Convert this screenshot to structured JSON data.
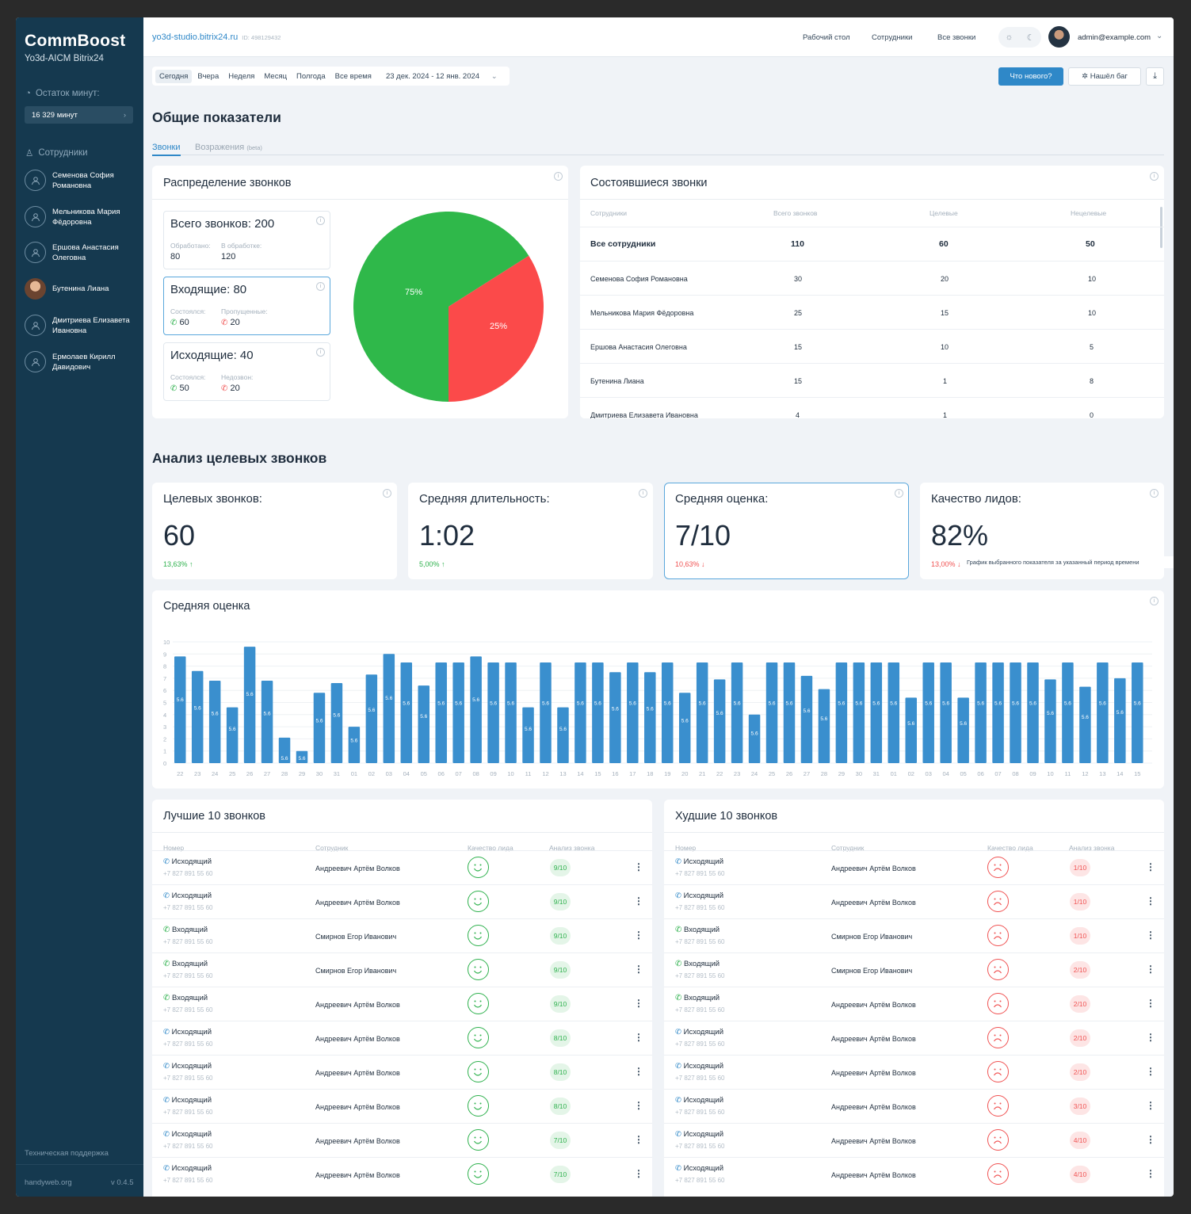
{
  "brand": {
    "name": "CommBoost",
    "subtitle": "Yo3d-AICM Bitrix24"
  },
  "sidebar": {
    "minutes_label": "Остаток минут:",
    "minutes_value": "16 329 минут",
    "employees_label": "Сотрудники",
    "employees": [
      "Семенова София Романовна",
      "Мельникова Мария Фёдоровна",
      "Ершова Анастасия Олеговна",
      "Бутенина Лиана",
      "Дмитриева Елизавета Ивановна",
      "Ермолаев Кирилл Давидович"
    ],
    "support": "Техническая поддержка",
    "footer_site": "handyweb.org",
    "version": "v 0.4.5"
  },
  "topbar": {
    "portal": "yo3d-studio.bitrix24.ru",
    "portal_id": "ID: 498129432",
    "nav": [
      "Рабочий стол",
      "Сотрудники",
      "Все звонки"
    ],
    "user": "admin@example.com"
  },
  "filters": {
    "periods": [
      "Сегодня",
      "Вчера",
      "Неделя",
      "Месяц",
      "Полгода",
      "Все время"
    ],
    "range": "23 дек. 2024 - 12 янв. 2024",
    "whats_new": "Что нового?",
    "found_bug": "Нашёл баг"
  },
  "overview": {
    "title": "Общие показатели",
    "tab_calls": "Звонки",
    "tab_objections": "Возражения",
    "tab_beta": "(beta)"
  },
  "distribution": {
    "title": "Распределение звонков",
    "total": {
      "title": "Всего звонков: 200",
      "l1": "Обработано:",
      "v1": "80",
      "l2": "В обработке:",
      "v2": "120"
    },
    "incoming": {
      "title": "Входящие: 80",
      "l1": "Состоялся:",
      "v1": "60",
      "l2": "Пропущенные:",
      "v2": "20"
    },
    "outgoing": {
      "title": "Исходящие: 40",
      "l1": "Состоялся:",
      "v1": "50",
      "l2": "Недозвон:",
      "v2": "20"
    },
    "pie": {
      "green_label": "75%",
      "red_label": "25%",
      "green_color": "#2fb84a",
      "red_color": "#fb4a4a",
      "green_share": 0.66
    }
  },
  "completed": {
    "title": "Состоявшиеся звонки",
    "headers": [
      "Сотрудники",
      "Всего звонков",
      "Целевые",
      "Нецелевые"
    ],
    "rows": [
      [
        "Все сотрудники",
        "110",
        "60",
        "50"
      ],
      [
        "Семенова София Романовна",
        "30",
        "20",
        "10"
      ],
      [
        "Мельникова Мария Фёдоровна",
        "25",
        "15",
        "10"
      ],
      [
        "Ершова Анастасия Олеговна",
        "15",
        "10",
        "5"
      ],
      [
        "Бутенина Лиана",
        "15",
        "1",
        "8"
      ],
      [
        "Дмитриева Елизавета Ивановна",
        "4",
        "1",
        "0"
      ]
    ]
  },
  "analysis": {
    "title": "Анализ целевых звонков",
    "kpis": [
      {
        "title": "Целевых звонков:",
        "value": "60",
        "change": "13,63% ↑",
        "dir": "up"
      },
      {
        "title": "Средняя длительность:",
        "value": "1:02",
        "change": "5,00% ↑",
        "dir": "up"
      },
      {
        "title": "Средняя оценка:",
        "value": "7/10",
        "change": "10,63% ↓",
        "dir": "down"
      },
      {
        "title": "Качество лидов:",
        "value": "82%",
        "change": "13,00% ↓",
        "dir": "down"
      }
    ],
    "tooltip": "График выбранного показателя за указанный период времени"
  },
  "chart_data": {
    "type": "bar",
    "title": "Средняя оценка",
    "ylim": [
      0,
      10
    ],
    "yticks": [
      0,
      1,
      2,
      3,
      4,
      5,
      6,
      7,
      8,
      9,
      10
    ],
    "bar_label": "5.6",
    "color": "#3a8fce",
    "categories": [
      "22",
      "23",
      "24",
      "25",
      "26",
      "27",
      "28",
      "29",
      "30",
      "31",
      "01",
      "02",
      "03",
      "04",
      "05",
      "06",
      "07",
      "08",
      "09",
      "10",
      "11",
      "12",
      "13",
      "14",
      "15",
      "16",
      "17",
      "18",
      "19",
      "20",
      "21",
      "22",
      "23",
      "24",
      "25",
      "26",
      "27",
      "28",
      "29",
      "30",
      "31",
      "01",
      "02",
      "03",
      "04",
      "05",
      "06",
      "07",
      "08",
      "09",
      "10",
      "11",
      "12",
      "13",
      "14",
      "15"
    ],
    "values": [
      8.8,
      7.6,
      6.8,
      4.6,
      9.6,
      6.8,
      2.1,
      1.0,
      5.8,
      6.6,
      3.0,
      7.3,
      9.0,
      8.3,
      6.4,
      8.3,
      8.3,
      8.8,
      8.3,
      8.3,
      4.6,
      8.3,
      4.6,
      8.3,
      8.3,
      7.5,
      8.3,
      7.5,
      8.3,
      5.8,
      8.3,
      6.9,
      8.3,
      4.0,
      8.3,
      8.3,
      7.2,
      6.1,
      8.3,
      8.3,
      8.3,
      8.3,
      5.4,
      8.3,
      8.3,
      5.4,
      8.3,
      8.3,
      8.3,
      8.3,
      6.9,
      8.3,
      6.3,
      8.3,
      7.0,
      8.3
    ]
  },
  "best": {
    "title": "Лучшие 10 звонков",
    "headers": [
      "Номер",
      "Сотрудник",
      "Качество лида",
      "Анализ звонка"
    ],
    "rows": [
      {
        "type": "Исходящий",
        "phone": "+7 827 891 55 60",
        "employee": "Андреевич Артём Волков",
        "score": "9/10"
      },
      {
        "type": "Исходящий",
        "phone": "+7 827 891 55 60",
        "employee": "Андреевич Артём Волков",
        "score": "9/10"
      },
      {
        "type": "Входящий",
        "phone": "+7 827 891 55 60",
        "employee": "Смирнов Егор Иванович",
        "score": "9/10"
      },
      {
        "type": "Входящий",
        "phone": "+7 827 891 55 60",
        "employee": "Смирнов Егор Иванович",
        "score": "9/10"
      },
      {
        "type": "Входящий",
        "phone": "+7 827 891 55 60",
        "employee": "Андреевич Артём Волков",
        "score": "9/10"
      },
      {
        "type": "Исходящий",
        "phone": "+7 827 891 55 60",
        "employee": "Андреевич Артём Волков",
        "score": "8/10"
      },
      {
        "type": "Исходящий",
        "phone": "+7 827 891 55 60",
        "employee": "Андреевич Артём Волков",
        "score": "8/10"
      },
      {
        "type": "Исходящий",
        "phone": "+7 827 891 55 60",
        "employee": "Андреевич Артём Волков",
        "score": "8/10"
      },
      {
        "type": "Исходящий",
        "phone": "+7 827 891 55 60",
        "employee": "Андреевич Артём Волков",
        "score": "7/10"
      },
      {
        "type": "Исходящий",
        "phone": "+7 827 891 55 60",
        "employee": "Андреевич Артём Волков",
        "score": "7/10"
      }
    ]
  },
  "worst": {
    "title": "Худшие 10 звонков",
    "headers": [
      "Номер",
      "Сотрудник",
      "Качество лида",
      "Анализ звонка"
    ],
    "rows": [
      {
        "type": "Исходящий",
        "phone": "+7 827 891 55 60",
        "employee": "Андреевич Артём Волков",
        "score": "1/10"
      },
      {
        "type": "Исходящий",
        "phone": "+7 827 891 55 60",
        "employee": "Андреевич Артём Волков",
        "score": "1/10"
      },
      {
        "type": "Входящий",
        "phone": "+7 827 891 55 60",
        "employee": "Смирнов Егор Иванович",
        "score": "1/10"
      },
      {
        "type": "Входящий",
        "phone": "+7 827 891 55 60",
        "employee": "Смирнов Егор Иванович",
        "score": "2/10"
      },
      {
        "type": "Входящий",
        "phone": "+7 827 891 55 60",
        "employee": "Андреевич Артём Волков",
        "score": "2/10"
      },
      {
        "type": "Исходящий",
        "phone": "+7 827 891 55 60",
        "employee": "Андреевич Артём Волков",
        "score": "2/10"
      },
      {
        "type": "Исходящий",
        "phone": "+7 827 891 55 60",
        "employee": "Андреевич Артём Волков",
        "score": "2/10"
      },
      {
        "type": "Исходящий",
        "phone": "+7 827 891 55 60",
        "employee": "Андреевич Артём Волков",
        "score": "3/10"
      },
      {
        "type": "Исходящий",
        "phone": "+7 827 891 55 60",
        "employee": "Андреевич Артём Волков",
        "score": "4/10"
      },
      {
        "type": "Исходящий",
        "phone": "+7 827 891 55 60",
        "employee": "Андреевич Артём Волков",
        "score": "4/10"
      }
    ]
  }
}
